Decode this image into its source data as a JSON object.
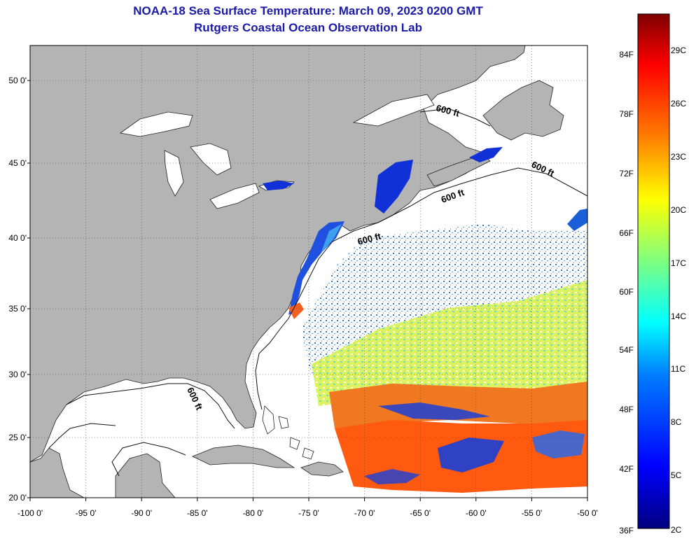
{
  "title": {
    "line1": "NOAA-18 Sea Surface Temperature:  March 09, 2023 0200 GMT",
    "line2": "Rutgers Coastal Ocean Observation Lab"
  },
  "map": {
    "lat_ticks": [
      "50 0'",
      "45 0'",
      "40 0'",
      "35 0'",
      "30 0'",
      "25 0'",
      "20 0'"
    ],
    "lon_ticks": [
      "-100 0'",
      "-95 0'",
      "-90 0'",
      "-85 0'",
      "-80 0'",
      "-75 0'",
      "-70 0'",
      "-65 0'",
      "-60 0'",
      "-55 0'",
      "-50 0'"
    ],
    "lat_values": [
      50,
      45,
      40,
      35,
      30,
      25,
      20
    ],
    "lon_values": [
      -100,
      -95,
      -90,
      -85,
      -80,
      -75,
      -70,
      -65,
      -60,
      -55,
      -50
    ],
    "lon_range": [
      -100,
      -50
    ],
    "lat_range": [
      20,
      52.5
    ],
    "contour_label": "600 ft",
    "colors": {
      "land": "#b4b4b4",
      "ocean_nodata": "#ffffff",
      "grid": "#555555"
    }
  },
  "colorbar": {
    "f_labels": [
      "84F",
      "78F",
      "72F",
      "66F",
      "60F",
      "54F",
      "48F",
      "42F",
      "36F"
    ],
    "c_labels": [
      "29C",
      "26C",
      "23C",
      "20C",
      "17C",
      "14C",
      "11C",
      "8C",
      "5C",
      "2C"
    ],
    "colors": [
      "#00007f",
      "#0000ff",
      "#007fff",
      "#00ffff",
      "#7fff7f",
      "#ffff00",
      "#ff7f00",
      "#ff0000",
      "#7f0000"
    ]
  }
}
